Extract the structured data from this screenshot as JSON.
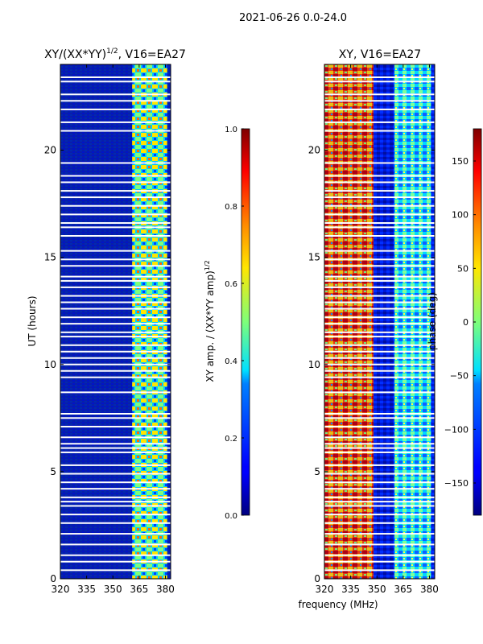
{
  "figure": {
    "suptitle": "2021-06-26 0.0-24.0",
    "shared_xlabel": "frequency (MHz)"
  },
  "chart_data": [
    {
      "type": "heatmap",
      "title_main": "XY/(XX*YY)",
      "title_sup": "1/2",
      "title_rest": ", V16=EA27",
      "xlabel": "frequency (MHz)",
      "ylabel": "UT (hours)",
      "xlim": [
        320,
        383
      ],
      "ylim": [
        0,
        24
      ],
      "xticks": [
        320,
        335,
        350,
        365,
        380
      ],
      "xtick_labels": [
        "320",
        "335",
        "350",
        "365",
        "380"
      ],
      "yticks": [
        0,
        5,
        10,
        15,
        20
      ],
      "ytick_labels": [
        "0",
        "5",
        "10",
        "15",
        "20"
      ],
      "colorbar": {
        "label_main": "XY amp. / (XX*YY amp)",
        "label_sup": "1/2",
        "range": [
          0.0,
          1.0
        ],
        "ticks": [
          0.0,
          0.2,
          0.4,
          0.6,
          0.8,
          1.0
        ],
        "tick_labels": [
          "0.0",
          "0.2",
          "0.4",
          "0.6",
          "0.8",
          "1.0"
        ],
        "colormap": "jet"
      },
      "active_band_mhz": [
        361,
        381
      ],
      "flagged_ut_hours": [
        23.4,
        23.2,
        22.6,
        22.3,
        21.9,
        21.3,
        20.9,
        19.4,
        18.8,
        18.5,
        18.1,
        17.8,
        17.4,
        17.0,
        16.6,
        16.4,
        16.0,
        15.3,
        14.9,
        14.6,
        14.1,
        13.9,
        13.6,
        13.2,
        12.9,
        12.6,
        12.2,
        11.9,
        11.5,
        11.3,
        10.9,
        10.6,
        10.3,
        10.0,
        9.7,
        9.4,
        8.7,
        7.7,
        7.5,
        7.1,
        6.6,
        6.3,
        6.1,
        5.9,
        5.3,
        4.9,
        4.5,
        4.2,
        3.8,
        3.6,
        3.4,
        3.0,
        2.6,
        2.1,
        1.6,
        1.1,
        0.8,
        0.4
      ]
    },
    {
      "type": "heatmap",
      "title": "XY, V16=EA27",
      "xlabel": "frequency (MHz)",
      "ylabel": "",
      "xlim": [
        320,
        383
      ],
      "ylim": [
        0,
        24
      ],
      "xticks": [
        320,
        335,
        350,
        365,
        380
      ],
      "xtick_labels": [
        "320",
        "335",
        "350",
        "365",
        "380"
      ],
      "yticks": [
        0,
        5,
        10,
        15,
        20
      ],
      "ytick_labels": [
        "0",
        "5",
        "10",
        "15",
        "20"
      ],
      "colorbar": {
        "label": "phase (deg)",
        "range": [
          -180,
          180
        ],
        "ticks": [
          -150,
          -100,
          -50,
          0,
          50,
          100,
          150
        ],
        "tick_labels": [
          "−150",
          "−100",
          "−50",
          "0",
          "50",
          "100",
          "150"
        ],
        "colormap": "jet"
      },
      "active_bands_mhz": [
        [
          320,
          348
        ],
        [
          360,
          381
        ]
      ],
      "flagged_ut_hours": [
        23.4,
        23.2,
        22.6,
        22.3,
        21.9,
        21.3,
        20.9,
        19.4,
        18.8,
        18.5,
        18.1,
        17.8,
        17.4,
        17.0,
        16.6,
        16.4,
        16.0,
        15.3,
        14.9,
        14.6,
        14.1,
        13.9,
        13.6,
        13.2,
        12.9,
        12.6,
        12.2,
        11.9,
        11.5,
        11.3,
        10.9,
        10.6,
        10.3,
        10.0,
        9.7,
        9.4,
        8.7,
        7.7,
        7.5,
        7.1,
        6.6,
        6.3,
        6.1,
        5.9,
        5.3,
        4.9,
        4.5,
        4.2,
        3.8,
        3.6,
        3.4,
        3.0,
        2.6,
        2.1,
        1.6,
        1.1,
        0.8,
        0.4
      ]
    }
  ]
}
